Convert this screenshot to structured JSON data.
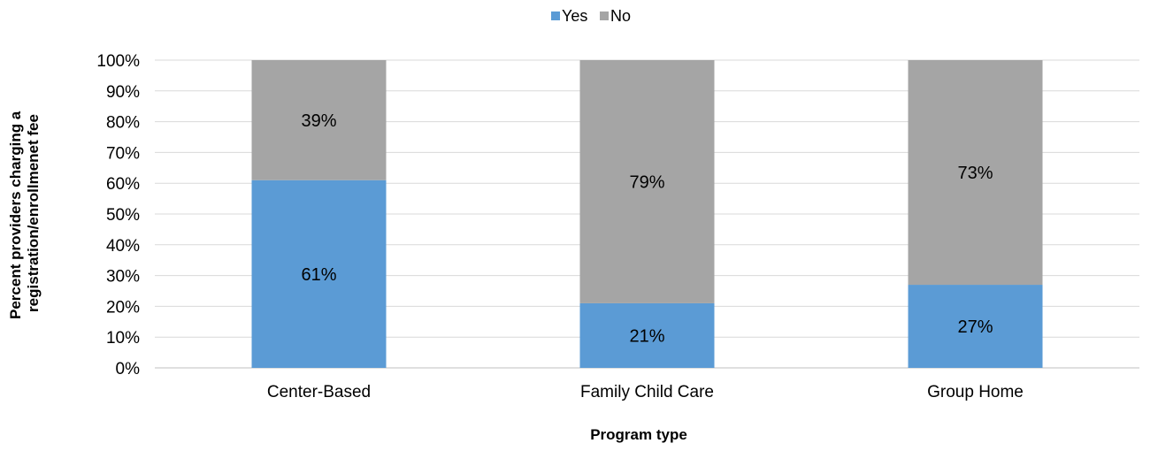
{
  "chart_data": {
    "type": "bar",
    "stacked": true,
    "percent_stacked": true,
    "categories": [
      "Center-Based",
      "Family Child Care",
      "Group Home"
    ],
    "series": [
      {
        "name": "Yes",
        "values": [
          61,
          21,
          27
        ],
        "color": "#5b9bd5"
      },
      {
        "name": "No",
        "values": [
          39,
          79,
          73
        ],
        "color": "#a5a5a5"
      }
    ],
    "data_labels": [
      [
        "61%",
        "21%",
        "27%"
      ],
      [
        "39%",
        "79%",
        "73%"
      ]
    ],
    "xlabel": "Program type",
    "ylabel_lines": [
      "Percent providers charging a",
      "registration/enrollmenet fee"
    ],
    "ylim": [
      0,
      100
    ],
    "yticks": [
      0,
      10,
      20,
      30,
      40,
      50,
      60,
      70,
      80,
      90,
      100
    ],
    "ytick_labels": [
      "0%",
      "10%",
      "20%",
      "30%",
      "40%",
      "50%",
      "60%",
      "70%",
      "80%",
      "90%",
      "100%"
    ],
    "grid": true,
    "gridline_color": "#d9d9d9",
    "legend_position": "top"
  }
}
